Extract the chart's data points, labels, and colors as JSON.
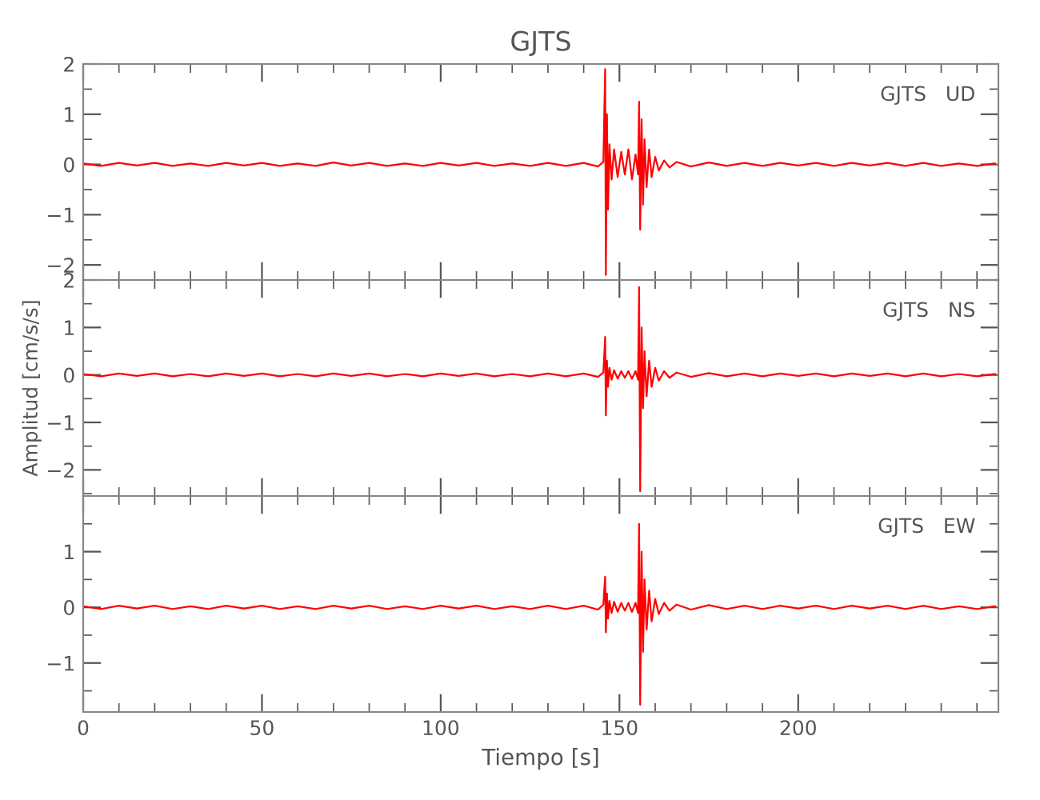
{
  "chart_data": [
    {
      "type": "line",
      "title": "GJTS",
      "annotations": [
        "GJTS   UD"
      ],
      "tick_labels": "y",
      "grid": false,
      "xlim": [
        0,
        256
      ],
      "xticks": [
        {
          "value": 0,
          "label": null
        },
        {
          "value": 50,
          "label": null
        },
        {
          "value": 100,
          "label": null
        },
        {
          "value": 150,
          "label": null
        },
        {
          "value": 200,
          "label": null
        }
      ],
      "ylim": [
        -2.3,
        2
      ],
      "yticks": [
        -2,
        -1,
        0,
        1,
        2
      ],
      "series": [
        {
          "color": "#ff0000",
          "x": [
            0,
            5,
            10,
            15,
            20,
            25,
            30,
            35,
            40,
            45,
            50,
            55,
            60,
            65,
            70,
            75,
            80,
            85,
            90,
            95,
            100,
            105,
            110,
            115,
            120,
            125,
            130,
            135,
            140,
            144,
            145.5,
            146,
            146.2,
            146.5,
            146.8,
            147.2,
            147.8,
            148.5,
            149.5,
            150.5,
            151.5,
            152.5,
            153.5,
            154.5,
            155.2,
            155.5,
            155.8,
            156.2,
            156.6,
            157,
            157.6,
            158.3,
            159,
            160,
            161,
            162.5,
            164,
            166,
            170,
            175,
            180,
            185,
            190,
            195,
            200,
            205,
            210,
            215,
            220,
            225,
            230,
            235,
            240,
            245,
            250,
            255
          ],
          "values": [
            0.02,
            -0.03,
            0.03,
            -0.02,
            0.03,
            -0.03,
            0.02,
            -0.03,
            0.03,
            -0.02,
            0.03,
            -0.03,
            0.02,
            -0.03,
            0.04,
            -0.02,
            0.03,
            -0.03,
            0.02,
            -0.03,
            0.03,
            -0.02,
            0.03,
            -0.03,
            0.02,
            -0.03,
            0.03,
            -0.03,
            0.03,
            -0.04,
            0.05,
            1.9,
            -2.2,
            1.0,
            -0.9,
            0.4,
            -0.3,
            0.3,
            -0.25,
            0.25,
            -0.2,
            0.3,
            -0.3,
            0.2,
            -0.2,
            1.25,
            -1.3,
            0.9,
            -0.8,
            0.5,
            -0.45,
            0.3,
            -0.25,
            0.15,
            -0.12,
            0.08,
            -0.06,
            0.05,
            -0.04,
            0.04,
            -0.03,
            0.03,
            -0.03,
            0.03,
            -0.02,
            0.03,
            -0.03,
            0.03,
            -0.02,
            0.03,
            -0.03,
            0.03,
            -0.03,
            0.02,
            -0.03,
            0.02
          ]
        }
      ]
    },
    {
      "type": "line",
      "ylabel": "Amplitud [cm/s/s]",
      "annotations": [
        "GJTS   NS"
      ],
      "tick_labels": "y",
      "grid": false,
      "xlim": [
        0,
        256
      ],
      "xticks": [
        {
          "value": 0,
          "label": null
        },
        {
          "value": 50,
          "label": null
        },
        {
          "value": 100,
          "label": null
        },
        {
          "value": 150,
          "label": null
        },
        {
          "value": 200,
          "label": null
        }
      ],
      "ylim": [
        -2.55,
        2
      ],
      "yticks": [
        -2,
        -1,
        0,
        1,
        2
      ],
      "series": [
        {
          "color": "#ff0000",
          "x": [
            0,
            5,
            10,
            15,
            20,
            25,
            30,
            35,
            40,
            45,
            50,
            55,
            60,
            65,
            70,
            75,
            80,
            85,
            90,
            95,
            100,
            105,
            110,
            115,
            120,
            125,
            130,
            135,
            140,
            144,
            145.5,
            146,
            146.2,
            146.5,
            146.8,
            147.2,
            147.8,
            148.5,
            149.5,
            150.5,
            151.5,
            152.5,
            153.5,
            154.5,
            155.2,
            155.5,
            155.8,
            156.2,
            156.6,
            157,
            157.6,
            158.3,
            159,
            160,
            161,
            162.5,
            164,
            166,
            170,
            175,
            180,
            185,
            190,
            195,
            200,
            205,
            210,
            215,
            220,
            225,
            230,
            235,
            240,
            245,
            250,
            255
          ],
          "values": [
            0.02,
            -0.03,
            0.03,
            -0.02,
            0.03,
            -0.03,
            0.02,
            -0.03,
            0.03,
            -0.02,
            0.03,
            -0.03,
            0.02,
            -0.03,
            0.03,
            -0.02,
            0.03,
            -0.03,
            0.02,
            -0.03,
            0.03,
            -0.02,
            0.03,
            -0.03,
            0.02,
            -0.03,
            0.03,
            -0.03,
            0.03,
            -0.04,
            0.05,
            0.8,
            -0.85,
            0.3,
            -0.25,
            0.15,
            -0.1,
            0.1,
            -0.08,
            0.08,
            -0.06,
            0.08,
            -0.08,
            0.08,
            -0.1,
            1.85,
            -2.45,
            1.0,
            -0.7,
            0.5,
            -0.45,
            0.3,
            -0.25,
            0.15,
            -0.12,
            0.08,
            -0.06,
            0.05,
            -0.04,
            0.04,
            -0.03,
            0.03,
            -0.03,
            0.03,
            -0.02,
            0.03,
            -0.03,
            0.03,
            -0.02,
            0.03,
            -0.03,
            0.03,
            -0.03,
            0.02,
            -0.03,
            0.02
          ]
        }
      ]
    },
    {
      "type": "line",
      "xlabel": "Tiempo [s]",
      "annotations": [
        "GJTS   EW"
      ],
      "grid": false,
      "xlim": [
        0,
        256
      ],
      "xticks": [
        0,
        50,
        100,
        150,
        200
      ],
      "ylim": [
        -1.88,
        2
      ],
      "yticks": [
        -1,
        0,
        1
      ],
      "series": [
        {
          "color": "#ff0000",
          "x": [
            0,
            5,
            10,
            15,
            20,
            25,
            30,
            35,
            40,
            45,
            50,
            55,
            60,
            65,
            70,
            75,
            80,
            85,
            90,
            95,
            100,
            105,
            110,
            115,
            120,
            125,
            130,
            135,
            140,
            144,
            145.5,
            146,
            146.2,
            146.5,
            146.8,
            147.2,
            147.8,
            148.5,
            149.5,
            150.5,
            151.5,
            152.5,
            153.5,
            154.5,
            155.2,
            155.5,
            155.8,
            156.2,
            156.6,
            157,
            157.6,
            158.3,
            159,
            160,
            161,
            162.5,
            164,
            166,
            170,
            175,
            180,
            185,
            190,
            195,
            200,
            205,
            210,
            215,
            220,
            225,
            230,
            235,
            240,
            245,
            250,
            255
          ],
          "values": [
            0.02,
            -0.03,
            0.03,
            -0.02,
            0.03,
            -0.03,
            0.02,
            -0.03,
            0.03,
            -0.02,
            0.03,
            -0.03,
            0.02,
            -0.03,
            0.03,
            -0.02,
            0.03,
            -0.03,
            0.02,
            -0.03,
            0.03,
            -0.02,
            0.03,
            -0.03,
            0.02,
            -0.03,
            0.03,
            -0.03,
            0.03,
            -0.04,
            0.05,
            0.55,
            -0.45,
            0.25,
            -0.2,
            0.12,
            -0.1,
            0.1,
            -0.08,
            0.08,
            -0.06,
            0.08,
            -0.08,
            0.08,
            -0.1,
            1.5,
            -1.75,
            1.0,
            -0.8,
            0.5,
            -0.4,
            0.3,
            -0.25,
            0.15,
            -0.12,
            0.08,
            -0.06,
            0.05,
            -0.04,
            0.04,
            -0.03,
            0.03,
            -0.03,
            0.03,
            -0.02,
            0.03,
            -0.03,
            0.03,
            -0.02,
            0.03,
            -0.03,
            0.03,
            -0.03,
            0.02,
            -0.03,
            0.02
          ]
        }
      ]
    }
  ]
}
